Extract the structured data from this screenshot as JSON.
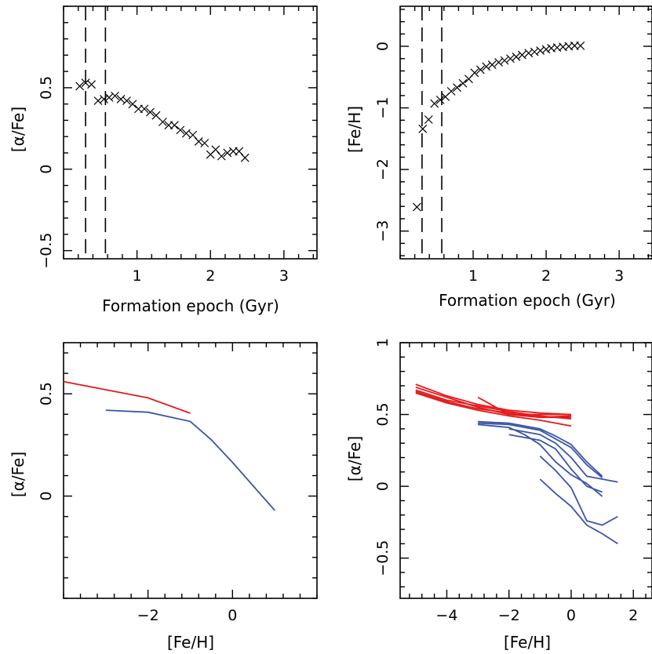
{
  "chart_data": [
    {
      "id": "p1",
      "type": "scatter",
      "xlabel": "Formation epoch (Gyr)",
      "ylabel": "[α/Fe]",
      "xlim": [
        0,
        3.45
      ],
      "ylim": [
        -0.55,
        1.0
      ],
      "xticks": [
        1,
        2,
        3
      ],
      "xtick_labels": [
        "1",
        "2",
        "3"
      ],
      "yticks": [
        -0.5,
        0,
        0.5
      ],
      "ytick_labels": [
        "−0.5",
        "0",
        "0.5"
      ],
      "marker": "cross",
      "vlines": [
        0.3,
        0.57
      ],
      "x": [
        0.22,
        0.3,
        0.38,
        0.47,
        0.55,
        0.62,
        0.7,
        0.78,
        0.86,
        0.94,
        1.02,
        1.1,
        1.18,
        1.26,
        1.35,
        1.43,
        1.51,
        1.59,
        1.67,
        1.76,
        1.84,
        1.92,
        2.0,
        2.07,
        2.15,
        2.23,
        2.31,
        2.39,
        2.47
      ],
      "y": [
        0.51,
        0.53,
        0.52,
        0.42,
        0.43,
        0.44,
        0.45,
        0.43,
        0.42,
        0.4,
        0.37,
        0.37,
        0.35,
        0.33,
        0.29,
        0.27,
        0.27,
        0.24,
        0.22,
        0.21,
        0.17,
        0.16,
        0.09,
        0.12,
        0.08,
        0.1,
        0.11,
        0.11,
        0.07
      ]
    },
    {
      "id": "p2",
      "type": "scatter",
      "xlabel": "Formation epoch (Gyr)",
      "ylabel": "[Fe/H]",
      "xlim": [
        0,
        3.45
      ],
      "ylim": [
        -3.45,
        0.65
      ],
      "xticks": [
        1,
        2,
        3
      ],
      "xtick_labels": [
        "1",
        "2",
        "3"
      ],
      "yticks": [
        -3,
        -2,
        -1,
        0
      ],
      "ytick_labels": [
        "−3",
        "−2",
        "−1",
        "0"
      ],
      "marker": "cross",
      "vlines": [
        0.3,
        0.57
      ],
      "x": [
        0.23,
        0.31,
        0.39,
        0.47,
        0.55,
        0.62,
        0.7,
        0.78,
        0.86,
        0.94,
        1.02,
        1.1,
        1.18,
        1.26,
        1.35,
        1.43,
        1.51,
        1.59,
        1.67,
        1.76,
        1.84,
        1.92,
        2.0,
        2.07,
        2.15,
        2.23,
        2.31,
        2.39,
        2.47
      ],
      "y": [
        -2.61,
        -1.34,
        -1.19,
        -0.93,
        -0.87,
        -0.82,
        -0.73,
        -0.67,
        -0.6,
        -0.53,
        -0.43,
        -0.38,
        -0.33,
        -0.3,
        -0.26,
        -0.23,
        -0.2,
        -0.17,
        -0.14,
        -0.11,
        -0.09,
        -0.07,
        -0.05,
        -0.03,
        -0.02,
        -0.01,
        0.0,
        0.01,
        0.01
      ]
    },
    {
      "id": "p3",
      "type": "line",
      "xlabel": "[Fe/H]",
      "ylabel": "[α/Fe]",
      "xlim": [
        -4.0,
        2.0
      ],
      "ylim": [
        -0.5,
        0.75
      ],
      "xticks": [
        -2,
        0
      ],
      "xtick_labels": [
        "−2",
        "0"
      ],
      "yticks": [
        0,
        0.5
      ],
      "ytick_labels": [
        "0",
        "0.5"
      ],
      "series": [
        {
          "color": "#e41a1c",
          "lines": [
            [
              [
                -4.0,
                0.56
              ],
              [
                -3.0,
                0.52
              ],
              [
                -2.0,
                0.48
              ],
              [
                -1.0,
                0.405
              ]
            ]
          ]
        },
        {
          "color": "#3b55a8",
          "lines": [
            [
              [
                -3.0,
                0.42
              ],
              [
                -2.0,
                0.41
              ],
              [
                -1.0,
                0.365
              ],
              [
                -0.5,
                0.275
              ],
              [
                0.0,
                0.165
              ],
              [
                1.0,
                -0.07
              ]
            ]
          ]
        }
      ]
    },
    {
      "id": "p4",
      "type": "line",
      "xlabel": "[Fe/H]",
      "ylabel": "[α/Fe]",
      "xlim": [
        -5.5,
        2.6
      ],
      "ylim": [
        -0.78,
        1.0
      ],
      "xticks": [
        -4,
        -2,
        0,
        2
      ],
      "xtick_labels": [
        "−4",
        "−2",
        "0",
        "2"
      ],
      "yticks": [
        -0.5,
        0,
        0.5,
        1
      ],
      "ytick_labels": [
        "−0.5",
        "0",
        "0.5",
        "1"
      ],
      "series": [
        {
          "color": "#e41a1c",
          "lines": [
            [
              [
                -5.0,
                0.71
              ],
              [
                -4.0,
                0.63
              ],
              [
                -3.0,
                0.57
              ],
              [
                -2.0,
                0.53
              ],
              [
                -1.0,
                0.51
              ],
              [
                0.0,
                0.5
              ]
            ],
            [
              [
                -5.0,
                0.69
              ],
              [
                -4.0,
                0.62
              ],
              [
                -3.0,
                0.55
              ],
              [
                -2.0,
                0.5
              ],
              [
                -1.0,
                0.48
              ],
              [
                0.0,
                0.48
              ]
            ],
            [
              [
                -5.0,
                0.67
              ],
              [
                -4.0,
                0.6
              ],
              [
                -3.0,
                0.56
              ],
              [
                -2.0,
                0.52
              ],
              [
                -1.0,
                0.49
              ],
              [
                0.0,
                0.47
              ]
            ],
            [
              [
                -5.0,
                0.66
              ],
              [
                -4.0,
                0.59
              ],
              [
                -3.0,
                0.54
              ],
              [
                -2.0,
                0.51
              ],
              [
                -1.0,
                0.48
              ],
              [
                0.0,
                0.49
              ]
            ],
            [
              [
                -5.0,
                0.65
              ],
              [
                -4.0,
                0.58
              ],
              [
                -3.0,
                0.53
              ],
              [
                -2.0,
                0.49
              ],
              [
                -1.0,
                0.46
              ],
              [
                0.0,
                0.42
              ]
            ],
            [
              [
                -3.0,
                0.62
              ],
              [
                -2.0,
                0.5
              ],
              [
                -1.0,
                0.5
              ],
              [
                0.0,
                0.5
              ]
            ]
          ]
        },
        {
          "color": "#3b55a8",
          "lines": [
            [
              [
                -3.0,
                0.44
              ],
              [
                -2.0,
                0.43
              ],
              [
                -1.0,
                0.39
              ],
              [
                -0.5,
                0.33
              ],
              [
                0.0,
                0.27
              ],
              [
                0.5,
                0.15
              ],
              [
                1.0,
                0.06
              ]
            ],
            [
              [
                -3.0,
                0.45
              ],
              [
                -2.0,
                0.44
              ],
              [
                -1.0,
                0.4
              ],
              [
                -0.5,
                0.35
              ],
              [
                0.0,
                0.29
              ],
              [
                0.5,
                0.17
              ],
              [
                1.0,
                0.07
              ]
            ],
            [
              [
                -3.0,
                0.43
              ],
              [
                -2.0,
                0.41
              ],
              [
                -1.5,
                0.36
              ],
              [
                -1.0,
                0.29
              ],
              [
                -0.5,
                0.17
              ],
              [
                0.0,
                0.08
              ],
              [
                0.5,
                0.02
              ],
              [
                1.0,
                -0.07
              ]
            ],
            [
              [
                -2.0,
                0.4
              ],
              [
                -1.0,
                0.36
              ],
              [
                -0.5,
                0.3
              ],
              [
                0.0,
                0.2
              ],
              [
                0.5,
                0.07
              ],
              [
                1.0,
                0.05
              ],
              [
                1.5,
                0.03
              ]
            ],
            [
              [
                -1.0,
                0.21
              ],
              [
                -0.5,
                0.11
              ],
              [
                0.0,
                -0.01
              ],
              [
                0.5,
                -0.24
              ],
              [
                1.0,
                -0.27
              ],
              [
                1.5,
                -0.21
              ]
            ],
            [
              [
                -1.0,
                0.05
              ],
              [
                -0.5,
                -0.05
              ],
              [
                0.0,
                -0.14
              ],
              [
                0.5,
                -0.27
              ],
              [
                1.0,
                -0.33
              ],
              [
                1.5,
                -0.4
              ]
            ],
            [
              [
                -2.0,
                0.36
              ],
              [
                -1.0,
                0.32
              ],
              [
                -0.5,
                0.26
              ],
              [
                0.0,
                0.12
              ],
              [
                0.5,
                0.0
              ],
              [
                1.0,
                -0.04
              ]
            ]
          ]
        }
      ]
    }
  ]
}
